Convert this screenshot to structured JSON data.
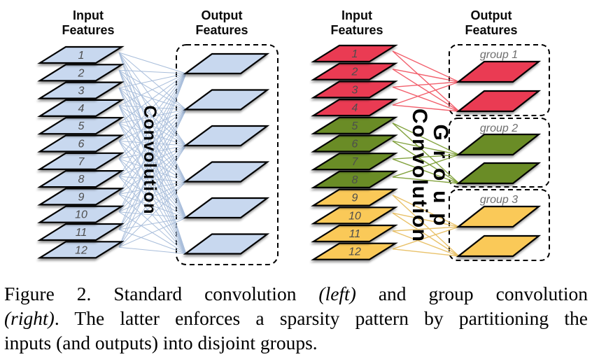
{
  "figure": {
    "left_panel": {
      "input_header": [
        "Input",
        "Features"
      ],
      "output_header": [
        "Output",
        "Features"
      ],
      "operation_label": "Convolution",
      "input_feature_labels": [
        "1",
        "2",
        "3",
        "4",
        "5",
        "6",
        "7",
        "8",
        "9",
        "10",
        "11",
        "12"
      ],
      "output_feature_count": 6,
      "feature_fill_color": "#c8d8ef",
      "connection_line_color": "#a9bedb"
    },
    "right_panel": {
      "input_header": [
        "Input",
        "Features"
      ],
      "output_header": [
        "Output",
        "Features"
      ],
      "operation_label": [
        "Group",
        "Convolution"
      ],
      "groups": [
        {
          "label": "group 1",
          "input_feature_labels": [
            "1",
            "2",
            "3",
            "4"
          ],
          "output_feature_count": 2,
          "fill_color": "#ea3a52",
          "connection_line_color": "#f2606d"
        },
        {
          "label": "group 2",
          "input_feature_labels": [
            "5",
            "6",
            "7",
            "8"
          ],
          "output_feature_count": 2,
          "fill_color": "#6b8c28",
          "connection_line_color": "#83a33f"
        },
        {
          "label": "group 3",
          "input_feature_labels": [
            "9",
            "10",
            "11",
            "12"
          ],
          "output_feature_count": 2,
          "fill_color": "#fac958",
          "connection_line_color": "#e9c26a"
        }
      ]
    }
  },
  "caption": {
    "line1_regular1": "Figure 2. Standard convolution ",
    "line1_italic": "(left)",
    "line1_regular2": " and group convolution",
    "line2_italic": "(right)",
    "line2_regular": ". The latter enforces a sparsity pattern by partitioning the",
    "line3_regular": "inputs (and outputs) into disjoint groups."
  }
}
